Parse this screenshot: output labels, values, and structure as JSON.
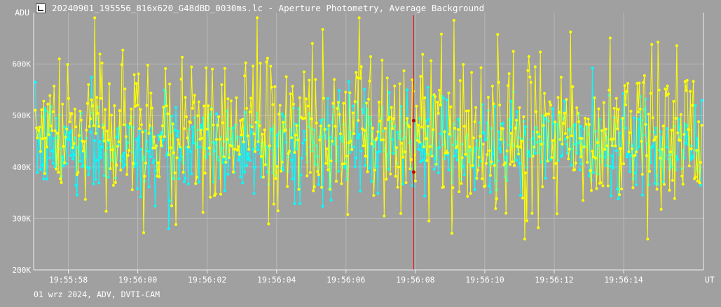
{
  "window": {
    "title": "20240901_195556_816x620_G48dBD_0030ms.lc - Aperture Photometry, Average Background",
    "icon": "lightcurve-app-icon"
  },
  "footer": {
    "text": "01 wrz 2024, ADV, DVTI-CAM"
  },
  "colors": {
    "background": "#a0a0a0",
    "grid": "#b8b8b8",
    "axis": "#f0f0f0",
    "series1": "#00ffff",
    "series2": "#ffff00",
    "cursor": "#ff0000"
  },
  "chart_data": {
    "type": "line",
    "title": "Aperture Photometry, Average Background",
    "xlabel": "UT",
    "ylabel": "ADU",
    "y_ticks": [
      "200K",
      "300K",
      "400K",
      "500K",
      "600K"
    ],
    "y_tick_values": [
      200000,
      300000,
      400000,
      500000,
      600000
    ],
    "x_ticks": [
      "19:55:58",
      "19:56:00",
      "19:56:02",
      "19:56:04",
      "19:56:06",
      "19:56:08",
      "19:56:10",
      "19:56:12",
      "19:56:14"
    ],
    "x_tick_values": [
      1.0,
      3.0,
      5.0,
      7.0,
      9.0,
      11.0,
      13.0,
      15.0,
      17.0
    ],
    "x_range_seconds_after_19_55_57": [
      0.0,
      19.3
    ],
    "ylim": [
      200000,
      700000
    ],
    "cursor_time": "19:56:08",
    "cursor_values": [
      490000,
      390000
    ],
    "grid": true,
    "series": [
      {
        "color": "#00ffff",
        "sampling_interval_s": 0.03,
        "mean": 440000,
        "spread": 45000,
        "min": 280000,
        "max": 640000,
        "generator_seed": 12345
      },
      {
        "color": "#ffff00",
        "sampling_interval_s": 0.03,
        "mean": 465000,
        "spread": 75000,
        "min": 260000,
        "max": 690000,
        "generator_seed": 67890
      }
    ]
  }
}
